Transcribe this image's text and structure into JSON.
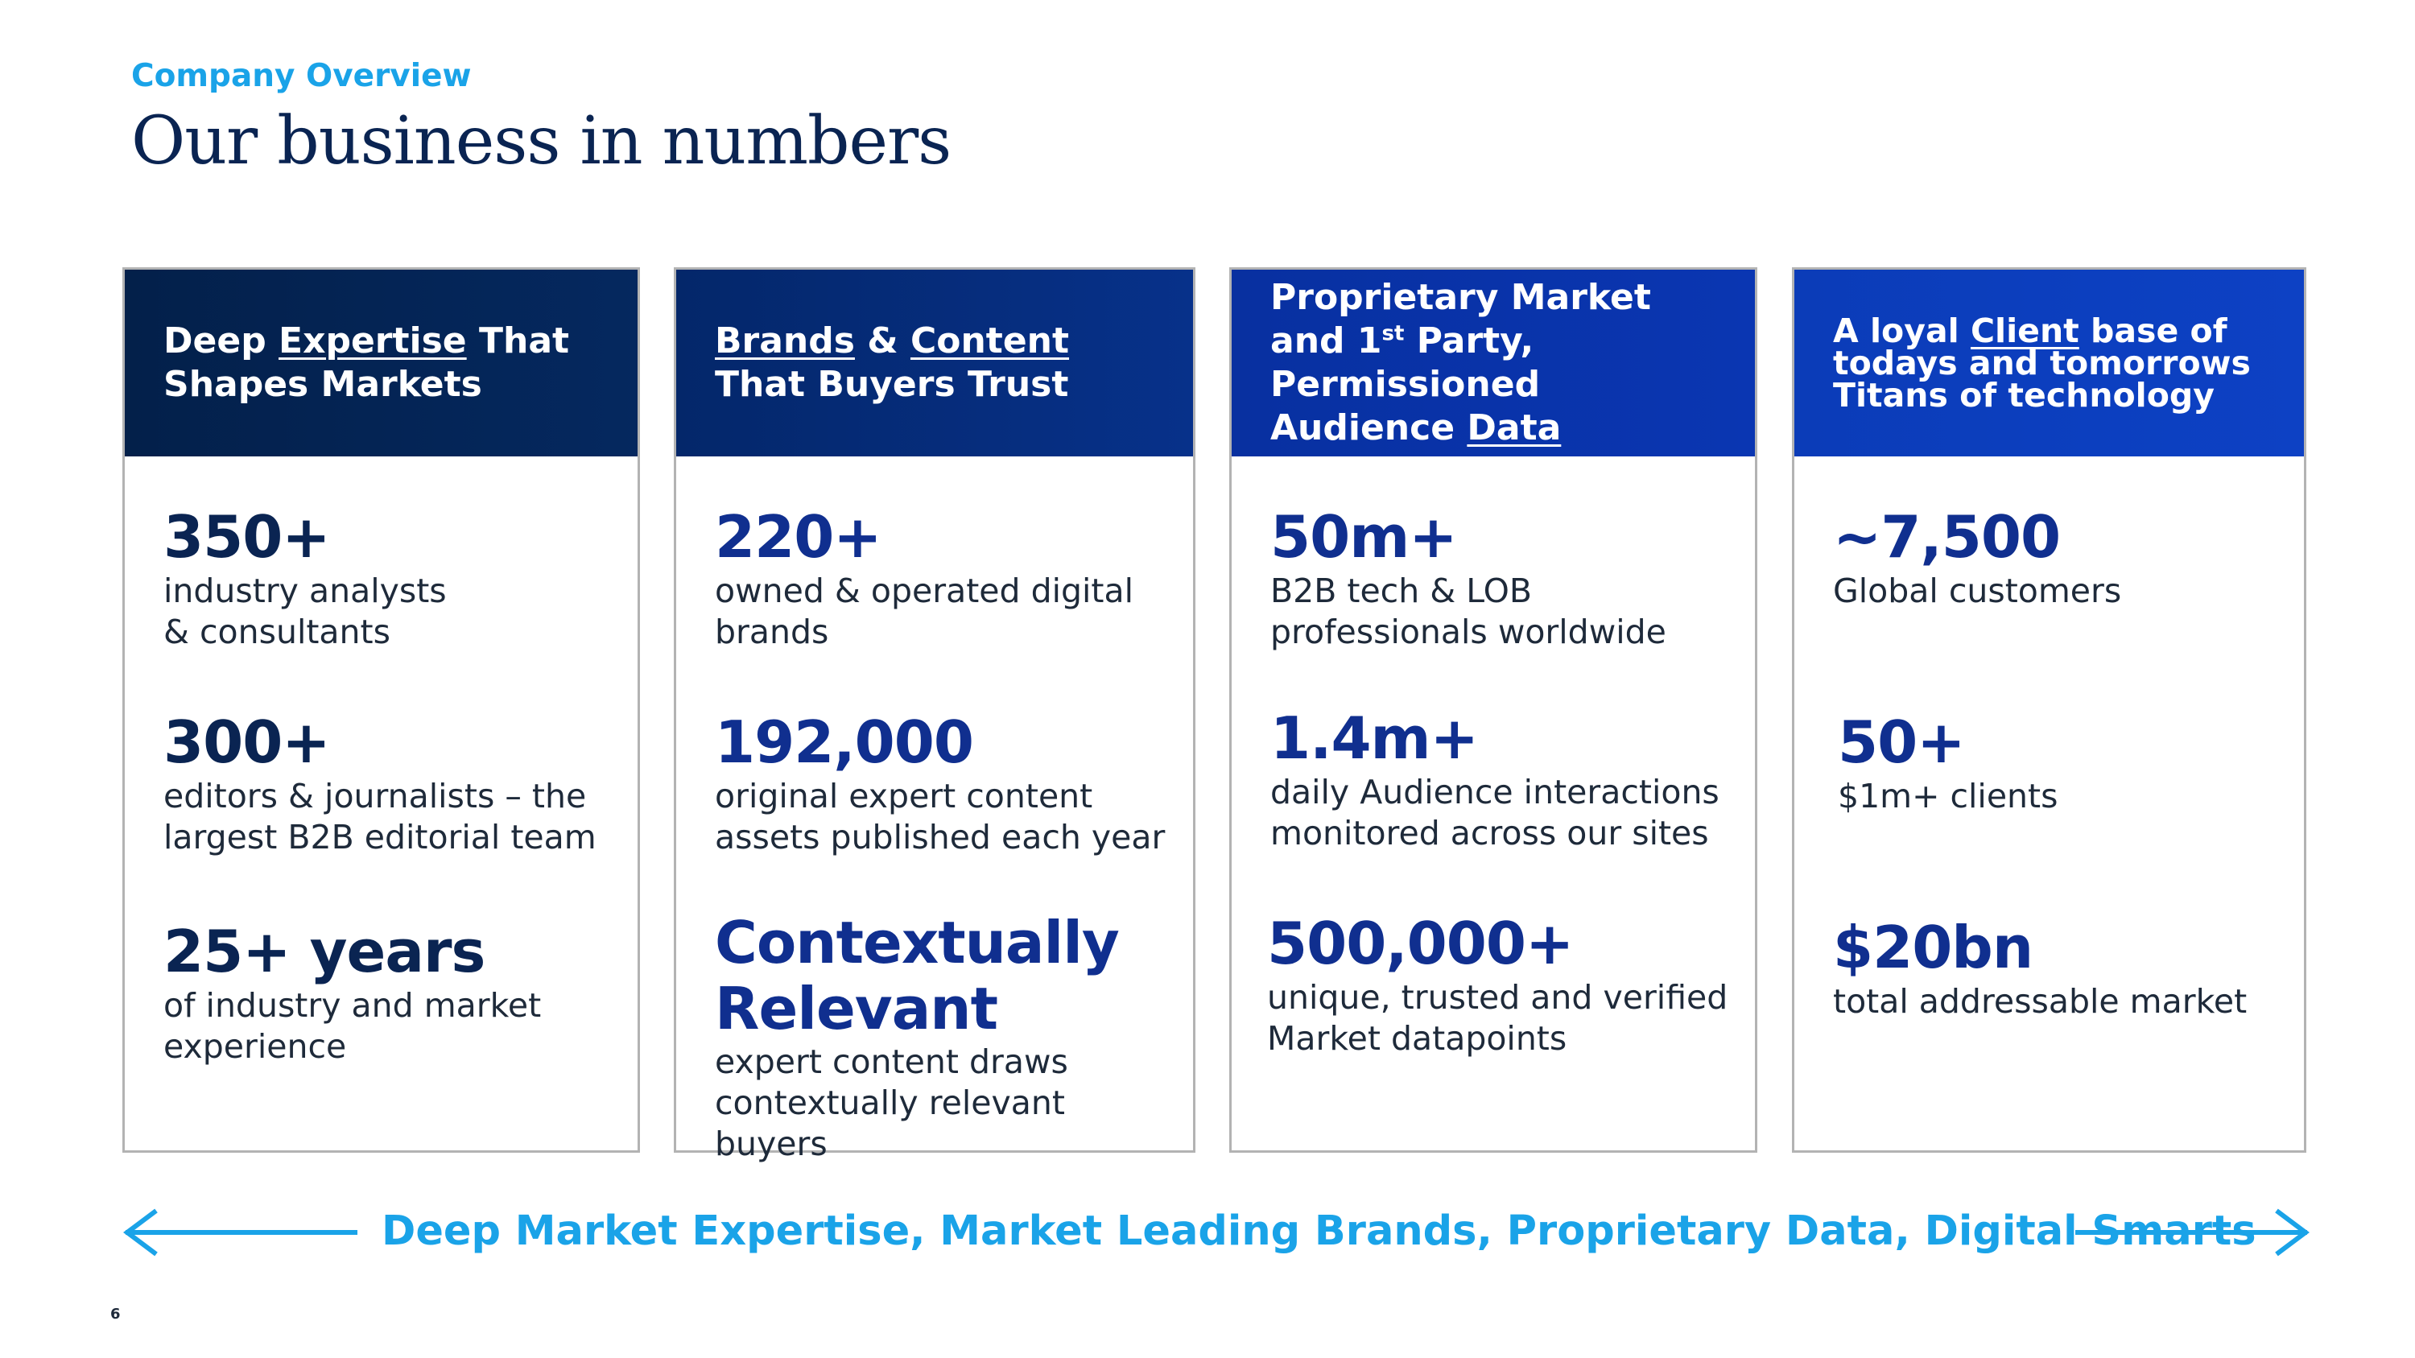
{
  "header": {
    "eyebrow": "Company Overview",
    "title": "Our business in numbers"
  },
  "cards": [
    {
      "head": {
        "parts": [
          "Deep ",
          "Expertise",
          " That Shapes Markets"
        ]
      },
      "stats": [
        {
          "value": "350+",
          "desc": "industry analysts\n& consultants"
        },
        {
          "value": "300+",
          "desc": "editors & journalists – the\nlargest B2B editorial team"
        },
        {
          "value": "25+ years",
          "desc": " of industry and market\nexperience"
        }
      ]
    },
    {
      "head": {
        "parts": [
          "Brands",
          " & ",
          "Content",
          " That Buyers Trust"
        ]
      },
      "stats": [
        {
          "value": "220+",
          "desc": "owned & operated digital\nbrands"
        },
        {
          "value": "192,000",
          "desc": "original expert content\nassets published each year"
        },
        {
          "value": "Contextually\nRelevant",
          "desc": "expert content draws\ncontextually relevant buyers"
        }
      ]
    },
    {
      "head": {
        "parts": [
          "Proprietary Market and ",
          "1",
          "st",
          " Party, Permissioned Audience ",
          "Data"
        ]
      },
      "stats": [
        {
          "value": "50m+",
          "desc": "B2B tech & LOB\nprofessionals worldwide"
        },
        {
          "value": "1.4m+",
          "desc": "daily Audience interactions\nmonitored across our sites"
        },
        {
          "value": "500,000+",
          "desc": "unique, trusted and verified\nMarket datapoints"
        }
      ]
    },
    {
      "head": {
        "parts": [
          "A loyal ",
          "Client",
          " base of todays and tomorrows Titans  of technology"
        ]
      },
      "stats": [
        {
          "value": "~7,500",
          "desc": "Global customers"
        },
        {
          "value": "50+",
          "desc": "$1m+ clients"
        },
        {
          "value": "$20bn",
          "desc": "total addressable market"
        }
      ]
    }
  ],
  "footer": {
    "tagline": "Deep Market Expertise, Market Leading Brands, Proprietary Data, Digital Smarts",
    "page_number": "6"
  },
  "colors": {
    "card1_head": "#03234d",
    "card2_head": "#052a6e",
    "card3_head": "#0a33a6",
    "card4_head": "#0d3fbf",
    "accent": "#1aa3e8",
    "navy": "#0a2452"
  }
}
